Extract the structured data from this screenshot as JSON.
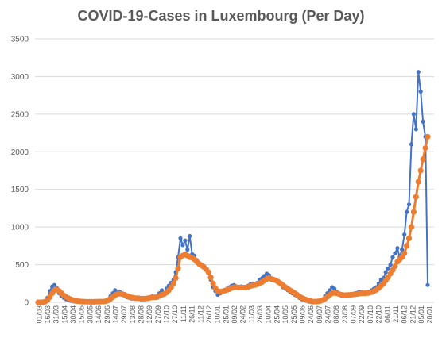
{
  "chart_data": {
    "type": "line",
    "title": "COVID-19-Cases in Luxembourg (Per Day)",
    "xlabel": "",
    "ylabel": "",
    "ylim": [
      0,
      3500
    ],
    "yticks": [
      0,
      500,
      1000,
      1500,
      2000,
      2500,
      3000,
      3500
    ],
    "grid": true,
    "legend": "none",
    "colors": {
      "daily": "#4472C4",
      "average": "#ED7D31",
      "grid": "#D9D9D9",
      "text": "#595959"
    },
    "x_tick_labels": [
      "01/03",
      "16/03",
      "31/03",
      "15/04",
      "30/04",
      "15/05",
      "30/05",
      "14/06",
      "29/06",
      "14/07",
      "29/07",
      "13/08",
      "28/08",
      "12/09",
      "27/09",
      "12/10",
      "27/10",
      "11/11",
      "26/11",
      "11/12",
      "26/12",
      "10/01",
      "25/01",
      "09/02",
      "24/02",
      "11/03",
      "26/03",
      "10/04",
      "25/04",
      "10/05",
      "25/05",
      "09/06",
      "24/06",
      "09/07",
      "24/07",
      "08/08",
      "23/08",
      "07/09",
      "22/09",
      "07/10",
      "22/10",
      "06/11",
      "21/11",
      "06/12",
      "21/12",
      "05/01",
      "20/01"
    ],
    "series": [
      {
        "values": [
          0,
          0,
          5,
          20,
          60,
          150,
          210,
          230,
          190,
          120,
          80,
          60,
          40,
          30,
          20,
          15,
          10,
          10,
          8,
          5,
          5,
          5,
          5,
          5,
          5,
          10,
          15,
          10,
          10,
          20,
          40,
          80,
          120,
          160,
          130,
          140,
          110,
          90,
          70,
          60,
          50,
          50,
          60,
          50,
          40,
          40,
          50,
          60,
          70,
          80,
          60,
          80,
          120,
          160,
          120,
          180,
          220,
          260,
          300,
          400,
          600,
          850,
          760,
          820,
          700,
          880,
          640,
          620,
          560,
          520,
          500,
          480,
          450,
          400,
          300,
          200,
          150,
          100,
          120,
          140,
          160,
          180,
          200,
          220,
          230,
          200,
          190,
          210,
          200,
          190,
          220,
          240,
          250,
          230,
          260,
          300,
          320,
          350,
          380,
          360,
          300,
          290,
          280,
          260,
          240,
          200,
          180,
          160,
          140,
          120,
          100,
          80,
          60,
          40,
          30,
          20,
          10,
          5,
          5,
          5,
          10,
          20,
          40,
          80,
          120,
          160,
          200,
          180,
          140,
          110,
          90,
          90,
          100,
          100,
          110,
          110,
          120,
          130,
          140,
          130,
          120,
          130,
          140,
          160,
          180,
          200,
          250,
          300,
          320,
          400,
          450,
          500,
          600,
          650,
          720,
          600,
          700,
          900,
          1200,
          1300,
          2100,
          2500,
          2300,
          3060,
          2800,
          2400,
          2200,
          230
        ]
      },
      {
        "values": [
          0,
          0,
          2,
          10,
          30,
          70,
          120,
          160,
          170,
          150,
          120,
          90,
          70,
          55,
          40,
          30,
          20,
          15,
          12,
          10,
          8,
          7,
          7,
          6,
          6,
          8,
          10,
          10,
          10,
          15,
          25,
          45,
          70,
          95,
          110,
          115,
          110,
          100,
          85,
          75,
          65,
          60,
          55,
          55,
          50,
          48,
          50,
          55,
          60,
          65,
          65,
          70,
          85,
          100,
          110,
          130,
          160,
          200,
          250,
          320,
          450,
          600,
          620,
          640,
          620,
          600,
          590,
          570,
          540,
          510,
          490,
          470,
          440,
          400,
          330,
          250,
          190,
          150,
          140,
          145,
          155,
          165,
          175,
          190,
          200,
          200,
          195,
          195,
          195,
          195,
          205,
          215,
          225,
          230,
          240,
          255,
          270,
          290,
          310,
          320,
          310,
          300,
          290,
          270,
          250,
          225,
          200,
          180,
          160,
          140,
          120,
          100,
          80,
          60,
          45,
          35,
          25,
          15,
          10,
          10,
          12,
          18,
          30,
          50,
          75,
          100,
          120,
          125,
          120,
          110,
          100,
          95,
          95,
          98,
          100,
          103,
          108,
          112,
          118,
          120,
          120,
          122,
          126,
          135,
          150,
          165,
          190,
          220,
          250,
          290,
          330,
          380,
          430,
          480,
          540,
          570,
          600,
          650,
          750,
          850,
          1000,
          1200,
          1400,
          1600,
          1750,
          1900,
          2050,
          2200
        ]
      }
    ]
  }
}
